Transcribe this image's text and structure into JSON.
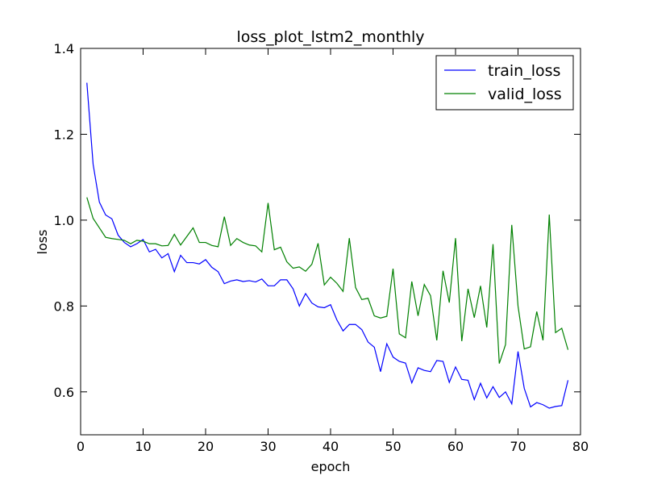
{
  "chart_data": {
    "type": "line",
    "title": "loss_plot_lstm2_monthly",
    "xlabel": "epoch",
    "ylabel": "loss",
    "xlim": [
      0,
      80
    ],
    "ylim": [
      0.5,
      1.4
    ],
    "xticks": [
      "0",
      "10",
      "20",
      "30",
      "40",
      "50",
      "60",
      "70",
      "80"
    ],
    "yticks": [
      "0.6",
      "0.8",
      "1.0",
      "1.2",
      "1.4"
    ],
    "legend": "top-right",
    "grid": false,
    "x": [
      1,
      2,
      3,
      4,
      5,
      6,
      7,
      8,
      9,
      10,
      11,
      12,
      13,
      14,
      15,
      16,
      17,
      18,
      19,
      20,
      21,
      22,
      23,
      24,
      25,
      26,
      27,
      28,
      29,
      30,
      31,
      32,
      33,
      34,
      35,
      36,
      37,
      38,
      39,
      40,
      41,
      42,
      43,
      44,
      45,
      46,
      47,
      48,
      49,
      50,
      51,
      52,
      53,
      54,
      55,
      56,
      57,
      58,
      59,
      60,
      61,
      62,
      63,
      64,
      65,
      66,
      67,
      68,
      69,
      70,
      71,
      72,
      73,
      74,
      75,
      76,
      77,
      78
    ],
    "series": [
      {
        "name": "train_loss",
        "color": "#0000ff",
        "values": [
          1.32,
          1.13,
          1.042,
          1.012,
          1.003,
          0.965,
          0.948,
          0.938,
          0.945,
          0.955,
          0.926,
          0.932,
          0.912,
          0.922,
          0.88,
          0.918,
          0.901,
          0.901,
          0.898,
          0.908,
          0.89,
          0.88,
          0.852,
          0.858,
          0.861,
          0.857,
          0.859,
          0.856,
          0.863,
          0.847,
          0.847,
          0.861,
          0.861,
          0.84,
          0.8,
          0.829,
          0.807,
          0.798,
          0.796,
          0.803,
          0.768,
          0.742,
          0.757,
          0.757,
          0.745,
          0.716,
          0.704,
          0.647,
          0.712,
          0.681,
          0.671,
          0.667,
          0.621,
          0.656,
          0.65,
          0.647,
          0.673,
          0.671,
          0.622,
          0.658,
          0.629,
          0.627,
          0.582,
          0.62,
          0.586,
          0.612,
          0.587,
          0.6,
          0.572,
          0.694,
          0.608,
          0.565,
          0.575,
          0.57,
          0.562,
          0.566,
          0.568,
          0.627
        ]
      },
      {
        "name": "valid_loss",
        "color": "#008000",
        "values": [
          1.053,
          1.004,
          0.982,
          0.96,
          0.957,
          0.955,
          0.953,
          0.945,
          0.953,
          0.951,
          0.945,
          0.945,
          0.94,
          0.941,
          0.967,
          0.942,
          0.962,
          0.982,
          0.948,
          0.948,
          0.941,
          0.938,
          1.008,
          0.941,
          0.957,
          0.948,
          0.942,
          0.94,
          0.926,
          1.04,
          0.931,
          0.937,
          0.903,
          0.888,
          0.891,
          0.881,
          0.897,
          0.946,
          0.849,
          0.867,
          0.853,
          0.834,
          0.958,
          0.843,
          0.815,
          0.818,
          0.777,
          0.772,
          0.776,
          0.887,
          0.735,
          0.726,
          0.857,
          0.777,
          0.85,
          0.824,
          0.72,
          0.882,
          0.808,
          0.958,
          0.718,
          0.84,
          0.773,
          0.847,
          0.75,
          0.944,
          0.666,
          0.71,
          0.989,
          0.8,
          0.7,
          0.705,
          0.787,
          0.72,
          1.013,
          0.738,
          0.748,
          0.698
        ]
      }
    ]
  }
}
